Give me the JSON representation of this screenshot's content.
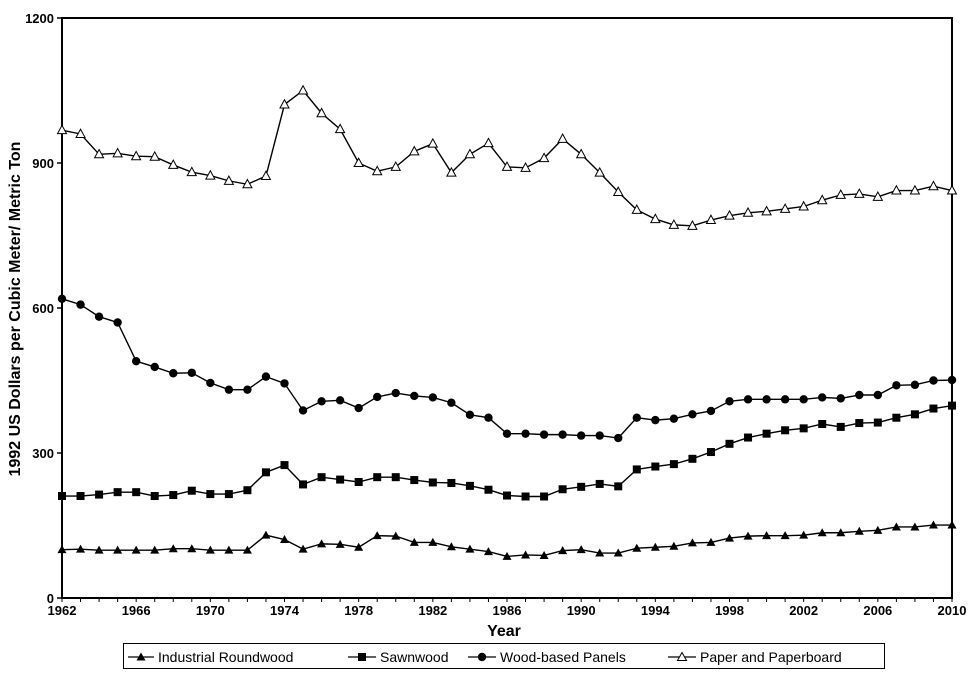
{
  "chart_data": {
    "type": "line",
    "title": "",
    "xlabel": "Year",
    "ylabel": "1992 US Dollars per Cubic Meter/ Metric Ton",
    "xlim": [
      1962,
      2010
    ],
    "ylim": [
      0,
      1200
    ],
    "x_ticks": [
      "1962",
      "1966",
      "1970",
      "1974",
      "1978",
      "1982",
      "1986",
      "1990",
      "1994",
      "1998",
      "2002",
      "2006",
      "2010"
    ],
    "y_ticks": [
      "0",
      "300",
      "600",
      "900",
      "1200"
    ],
    "grid": false,
    "legend_position": "bottom",
    "x": [
      1962,
      1963,
      1964,
      1965,
      1966,
      1967,
      1968,
      1969,
      1970,
      1971,
      1972,
      1973,
      1974,
      1975,
      1976,
      1977,
      1978,
      1979,
      1980,
      1981,
      1982,
      1983,
      1984,
      1985,
      1986,
      1987,
      1988,
      1989,
      1990,
      1991,
      1992,
      1993,
      1994,
      1995,
      1996,
      1997,
      1998,
      1999,
      2000,
      2001,
      2002,
      2003,
      2004,
      2005,
      2006,
      2007,
      2008,
      2009,
      2010
    ],
    "series": [
      {
        "name": "Industrial Roundwood",
        "marker": "filled-triangle",
        "values": [
          100,
          101,
          99,
          99,
          99,
          99,
          102,
          102,
          99,
          99,
          99,
          130,
          121,
          101,
          112,
          111,
          105,
          129,
          128,
          115,
          115,
          106,
          101,
          96,
          86,
          89,
          88,
          98,
          100,
          93,
          93,
          103,
          105,
          107,
          114,
          115,
          124,
          128,
          129,
          129,
          130,
          135,
          135,
          138,
          140,
          147,
          147,
          151,
          151
        ]
      },
      {
        "name": "Sawnwood",
        "marker": "filled-square",
        "values": [
          211,
          211,
          214,
          219,
          219,
          211,
          213,
          222,
          215,
          215,
          223,
          260,
          275,
          235,
          250,
          245,
          240,
          250,
          250,
          244,
          239,
          238,
          232,
          224,
          212,
          210,
          210,
          225,
          230,
          236,
          231,
          266,
          272,
          277,
          288,
          302,
          319,
          332,
          340,
          347,
          351,
          360,
          354,
          362,
          363,
          373,
          380,
          392,
          398
        ]
      },
      {
        "name": "Wood-based Panels",
        "marker": "filled-circle",
        "values": [
          619,
          607,
          582,
          570,
          490,
          478,
          465,
          466,
          445,
          431,
          431,
          458,
          444,
          388,
          407,
          409,
          393,
          416,
          424,
          418,
          415,
          404,
          379,
          373,
          340,
          340,
          338,
          338,
          336,
          336,
          331,
          373,
          368,
          371,
          380,
          387,
          407,
          411,
          411,
          411,
          411,
          415,
          413,
          420,
          420,
          440,
          441,
          450,
          451
        ]
      },
      {
        "name": "Paper and Paperboard",
        "marker": "open-triangle",
        "values": [
          968,
          960,
          918,
          920,
          914,
          913,
          896,
          881,
          874,
          863,
          856,
          873,
          1021,
          1050,
          1003,
          970,
          900,
          883,
          892,
          924,
          940,
          880,
          918,
          941,
          892,
          890,
          910,
          950,
          918,
          880,
          840,
          803,
          784,
          772,
          770,
          782,
          791,
          797,
          800,
          805,
          810,
          823,
          834,
          836,
          830,
          843,
          843,
          852,
          843
        ]
      }
    ]
  }
}
